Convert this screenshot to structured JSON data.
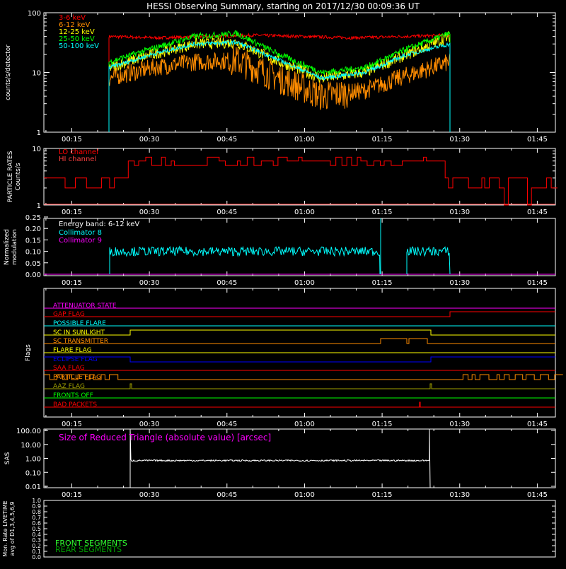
{
  "title": "HESSI Observing Summary, starting on 2017/12/30 00:09:36 UT",
  "time_ticks": [
    "00:15",
    "00:30",
    "00:45",
    "01:00",
    "01:15",
    "01:30",
    "01:45"
  ],
  "colors": {
    "axis": "#ffffff",
    "red": "#ff0000",
    "orange": "#ff8c00",
    "yellow": "#ffff00",
    "green": "#00ff00",
    "cyan": "#00ffff",
    "magenta": "#ff00ff",
    "blue": "#0000ff",
    "darkgreen": "#00c000",
    "lime": "#30ff30",
    "olive": "#a0a000",
    "pink": "#ff4040"
  },
  "chart_data": [
    {
      "id": "count_rates",
      "type": "line",
      "ylabel": "counts/s/detector",
      "yscale": "log",
      "ylim": [
        1,
        100
      ],
      "y_ticks": [
        "1",
        "10",
        "100"
      ],
      "series": [
        {
          "name": "3-6 keV",
          "color": "#ff0000"
        },
        {
          "name": "6-12 keV",
          "color": "#ff8c00"
        },
        {
          "name": "12-25 keV",
          "color": "#ffff00"
        },
        {
          "name": "25-50 keV",
          "color": "#00ff00"
        },
        {
          "name": "50-100 keV",
          "color": "#00ffff"
        }
      ],
      "data_start": "00:22",
      "data_end": "01:29",
      "approx_levels": {
        "3-6 keV": [
          40,
          38,
          40,
          42,
          40,
          38,
          40,
          42
        ],
        "6-12 keV": [
          8,
          12,
          15,
          16,
          8,
          4,
          5,
          9,
          15
        ],
        "12-25 keV": [
          12,
          20,
          30,
          32,
          15,
          8,
          10,
          20,
          40
        ],
        "25-50 keV": [
          15,
          25,
          40,
          45,
          20,
          10,
          12,
          25,
          45
        ],
        "50-100 keV": [
          12,
          20,
          30,
          32,
          16,
          8,
          10,
          20,
          30
        ]
      }
    },
    {
      "id": "particle_rates",
      "type": "line",
      "ylabel": "PARTICLE RATES Counts/s",
      "yscale": "log",
      "ylim": [
        1,
        10
      ],
      "y_ticks": [
        "1",
        "10"
      ],
      "series": [
        {
          "name": "LO channel",
          "color": "#ff0000"
        },
        {
          "name": "HI channel",
          "color": "#ff4040"
        }
      ]
    },
    {
      "id": "modulation",
      "type": "line",
      "ylabel": "Normalized modulation",
      "ylim": [
        0,
        0.25
      ],
      "y_ticks": [
        "0.00",
        "0.05",
        "0.10",
        "0.15",
        "0.20",
        "0.25"
      ],
      "annotation": "Energy band: 6-12 keV",
      "series": [
        {
          "name": "Collimator 8",
          "color": "#00ffff",
          "level": 0.1
        },
        {
          "name": "Collimator 9",
          "color": "#ff00ff",
          "level": 0.0
        }
      ]
    },
    {
      "id": "flags",
      "type": "line",
      "ylabel": "Flags",
      "flags": [
        {
          "name": "ATTENUATOR STATE",
          "color": "#ff00ff"
        },
        {
          "name": "GAP FLAG",
          "color": "#ff0000"
        },
        {
          "name": "POSSIBLE FLARE",
          "color": "#00ffff"
        },
        {
          "name": "SC IN SUNLIGHT",
          "color": "#ffff00"
        },
        {
          "name": "SC TRANSMITTER",
          "color": "#ff8c00"
        },
        {
          "name": "FLARE FLAG",
          "color": "#ffff00"
        },
        {
          "name": "ECLIPSE FLAG",
          "color": "#0000ff"
        },
        {
          "name": "SAA FLAG",
          "color": "#ff0000"
        },
        {
          "name": "PARTICLE FLAG",
          "color": "#ff8c00"
        },
        {
          "name": "AAZ FLAG",
          "color": "#a0a000"
        },
        {
          "name": "FRONTS OFF",
          "color": "#00ff00"
        },
        {
          "name": "BAD PACKETS",
          "color": "#ff0000"
        }
      ]
    },
    {
      "id": "sas",
      "type": "line",
      "ylabel": "SAS",
      "yscale": "log",
      "ylim": [
        0.01,
        100
      ],
      "y_ticks": [
        "0.01",
        "0.10",
        "1.00",
        "10.00",
        "100.00"
      ],
      "annotation": "Size of Reduced Triangle (absolute value) [arcsec]",
      "series": [
        {
          "name": "Size of Reduced Triangle",
          "color": "#ffffff",
          "level": 0.7
        }
      ]
    },
    {
      "id": "livetime",
      "type": "line",
      "ylabel": "Mon. Rate LIVETIME avg of D1,3,4,5,6,9",
      "ylim": [
        0,
        1.0
      ],
      "y_ticks": [
        "0.0",
        "0.1",
        "0.2",
        "0.3",
        "0.4",
        "0.5",
        "0.6",
        "0.7",
        "0.8",
        "0.9",
        "1.0"
      ],
      "series": [
        {
          "name": "FRONT SEGMENTS",
          "color": "#30ff30"
        },
        {
          "name": "REAR SEGMENTS",
          "color": "#00a000"
        }
      ]
    }
  ]
}
